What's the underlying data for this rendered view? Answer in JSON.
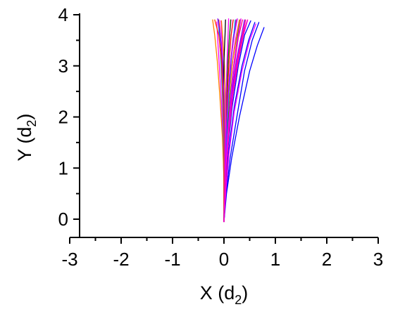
{
  "chart_data": {
    "type": "line",
    "xlabel": {
      "main": "X (d",
      "sub": "2",
      "close": ")"
    },
    "ylabel": {
      "main": "Y (d",
      "sub": "2",
      "close": ")"
    },
    "xlim": [
      -3,
      3
    ],
    "ylim": [
      -0.35,
      4
    ],
    "x_ticks": [
      -3,
      -2,
      -1,
      0,
      1,
      2,
      3
    ],
    "x_tick_labels": [
      "-3",
      "-2",
      "-1",
      "0",
      "1",
      "2",
      "3"
    ],
    "y_ticks": [
      0,
      1,
      2,
      3,
      4
    ],
    "y_tick_labels": [
      "0",
      "1",
      "2",
      "3",
      "4"
    ],
    "grid": false,
    "legend": "none",
    "series": [
      {
        "color": "#0000ff",
        "points": [
          [
            0.0,
            -0.05
          ],
          [
            0.05,
            0.5
          ],
          [
            0.15,
            1.2
          ],
          [
            0.3,
            2.0
          ],
          [
            0.5,
            2.9
          ],
          [
            0.65,
            3.4
          ],
          [
            0.78,
            3.75
          ]
        ]
      },
      {
        "color": "#0000ff",
        "points": [
          [
            0.0,
            -0.05
          ],
          [
            0.04,
            0.5
          ],
          [
            0.12,
            1.2
          ],
          [
            0.25,
            2.0
          ],
          [
            0.4,
            2.9
          ],
          [
            0.55,
            3.5
          ],
          [
            0.68,
            3.85
          ]
        ]
      },
      {
        "color": "#0000ff",
        "points": [
          [
            0.0,
            -0.05
          ],
          [
            0.03,
            0.6
          ],
          [
            0.1,
            1.4
          ],
          [
            0.2,
            2.2
          ],
          [
            0.35,
            3.0
          ],
          [
            0.48,
            3.5
          ],
          [
            0.6,
            3.85
          ]
        ]
      },
      {
        "color": "#0000ff",
        "points": [
          [
            0.0,
            -0.05
          ],
          [
            0.03,
            0.6
          ],
          [
            0.08,
            1.4
          ],
          [
            0.16,
            2.2
          ],
          [
            0.28,
            3.0
          ],
          [
            0.4,
            3.6
          ],
          [
            0.52,
            3.88
          ]
        ]
      },
      {
        "color": "#ff00ff",
        "points": [
          [
            0.0,
            -0.05
          ],
          [
            0.04,
            0.6
          ],
          [
            0.1,
            1.3
          ],
          [
            0.2,
            2.1
          ],
          [
            0.35,
            2.9
          ],
          [
            0.5,
            3.5
          ],
          [
            0.62,
            3.82
          ]
        ]
      },
      {
        "color": "#ff00ff",
        "points": [
          [
            0.0,
            -0.05
          ],
          [
            0.02,
            0.6
          ],
          [
            0.06,
            1.3
          ],
          [
            0.12,
            2.1
          ],
          [
            0.22,
            2.9
          ],
          [
            0.33,
            3.5
          ],
          [
            0.45,
            3.88
          ]
        ]
      },
      {
        "color": "#ff00ff",
        "points": [
          [
            0.0,
            -0.05
          ],
          [
            0.02,
            0.7
          ],
          [
            0.05,
            1.5
          ],
          [
            0.09,
            2.3
          ],
          [
            0.15,
            3.0
          ],
          [
            0.22,
            3.5
          ],
          [
            0.3,
            3.9
          ]
        ]
      },
      {
        "color": "#ff00ff",
        "points": [
          [
            0.0,
            -0.05
          ],
          [
            0.01,
            0.7
          ],
          [
            0.02,
            1.5
          ],
          [
            0.03,
            2.3
          ],
          [
            0.06,
            3.0
          ],
          [
            0.1,
            3.5
          ],
          [
            0.14,
            3.9
          ]
        ]
      },
      {
        "color": "#ff00ff",
        "points": [
          [
            0.0,
            -0.05
          ],
          [
            0.01,
            0.7
          ],
          [
            0.01,
            1.5
          ],
          [
            0.0,
            2.3
          ],
          [
            -0.02,
            3.0
          ],
          [
            -0.04,
            3.5
          ],
          [
            -0.06,
            3.88
          ]
        ]
      },
      {
        "color": "#ff00ff",
        "points": [
          [
            0.0,
            -0.05
          ],
          [
            0.0,
            0.7
          ],
          [
            -0.02,
            1.5
          ],
          [
            -0.05,
            2.3
          ],
          [
            -0.09,
            3.0
          ],
          [
            -0.12,
            3.5
          ],
          [
            -0.14,
            3.86
          ]
        ]
      },
      {
        "color": "#ff0080",
        "points": [
          [
            0.0,
            -0.05
          ],
          [
            0.03,
            0.7
          ],
          [
            0.08,
            1.5
          ],
          [
            0.15,
            2.3
          ],
          [
            0.25,
            3.0
          ],
          [
            0.35,
            3.55
          ],
          [
            0.42,
            3.9
          ]
        ]
      },
      {
        "color": "#ff0080",
        "points": [
          [
            0.0,
            -0.05
          ],
          [
            0.02,
            0.7
          ],
          [
            0.04,
            1.5
          ],
          [
            0.07,
            2.3
          ],
          [
            0.12,
            3.0
          ],
          [
            0.18,
            3.55
          ],
          [
            0.24,
            3.9
          ]
        ]
      },
      {
        "color": "#ff0080",
        "points": [
          [
            0.0,
            -0.05
          ],
          [
            0.02,
            0.7
          ],
          [
            0.06,
            1.5
          ],
          [
            0.12,
            2.3
          ],
          [
            0.2,
            3.0
          ],
          [
            0.28,
            3.55
          ],
          [
            0.36,
            3.9
          ]
        ]
      },
      {
        "color": "#ff8000",
        "points": [
          [
            0.0,
            -0.05
          ],
          [
            0.01,
            0.8
          ],
          [
            0.02,
            1.6
          ],
          [
            0.02,
            2.4
          ],
          [
            0.01,
            3.0
          ],
          [
            -0.02,
            3.5
          ],
          [
            -0.05,
            3.88
          ]
        ]
      },
      {
        "color": "#ff8000",
        "points": [
          [
            0.0,
            -0.05
          ],
          [
            0.02,
            0.8
          ],
          [
            0.05,
            1.6
          ],
          [
            0.1,
            2.4
          ],
          [
            0.17,
            3.1
          ],
          [
            0.25,
            3.6
          ],
          [
            0.3,
            3.9
          ]
        ]
      },
      {
        "color": "#ff8000",
        "points": [
          [
            0.0,
            -0.05
          ],
          [
            0.0,
            0.8
          ],
          [
            -0.03,
            1.6
          ],
          [
            -0.08,
            2.4
          ],
          [
            -0.13,
            3.1
          ],
          [
            -0.18,
            3.6
          ],
          [
            -0.22,
            3.9
          ]
        ]
      },
      {
        "color": "#ff0000",
        "points": [
          [
            0.0,
            -0.05
          ],
          [
            0.01,
            0.8
          ],
          [
            0.03,
            1.6
          ],
          [
            0.06,
            2.4
          ],
          [
            0.1,
            3.1
          ],
          [
            0.14,
            3.6
          ],
          [
            0.18,
            3.9
          ]
        ]
      },
      {
        "color": "#ff0000",
        "points": [
          [
            0.0,
            -0.05
          ],
          [
            0.0,
            0.8
          ],
          [
            -0.01,
            1.6
          ],
          [
            -0.02,
            2.4
          ],
          [
            -0.04,
            3.1
          ],
          [
            -0.07,
            3.6
          ],
          [
            -0.1,
            3.9
          ]
        ]
      },
      {
        "color": "#008000",
        "points": [
          [
            0.0,
            -0.05
          ],
          [
            0.01,
            0.8
          ],
          [
            0.03,
            1.6
          ],
          [
            0.05,
            2.4
          ],
          [
            0.08,
            3.1
          ],
          [
            0.11,
            3.6
          ],
          [
            0.13,
            3.9
          ]
        ]
      },
      {
        "color": "#008000",
        "points": [
          [
            0.0,
            -0.05
          ],
          [
            0.02,
            0.8
          ],
          [
            0.06,
            1.6
          ],
          [
            0.12,
            2.4
          ],
          [
            0.2,
            3.1
          ],
          [
            0.27,
            3.6
          ],
          [
            0.32,
            3.9
          ]
        ]
      },
      {
        "color": "#000000",
        "points": [
          [
            0.0,
            -0.05
          ],
          [
            0.01,
            0.8
          ],
          [
            0.0,
            1.6
          ],
          [
            -0.01,
            2.4
          ],
          [
            0.0,
            3.1
          ],
          [
            0.02,
            3.6
          ],
          [
            0.03,
            3.9
          ]
        ]
      },
      {
        "color": "#0080ff",
        "points": [
          [
            0.0,
            -0.05
          ],
          [
            0.0,
            0.8
          ],
          [
            -0.01,
            1.6
          ],
          [
            -0.03,
            2.4
          ],
          [
            -0.06,
            3.1
          ],
          [
            -0.09,
            3.6
          ],
          [
            -0.11,
            3.9
          ]
        ]
      },
      {
        "color": "#0080ff",
        "points": [
          [
            0.0,
            -0.05
          ],
          [
            0.02,
            0.8
          ],
          [
            0.05,
            1.6
          ],
          [
            0.09,
            2.4
          ],
          [
            0.14,
            3.1
          ],
          [
            0.19,
            3.6
          ],
          [
            0.22,
            3.9
          ]
        ]
      },
      {
        "color": "#8000ff",
        "points": [
          [
            0.0,
            -0.05
          ],
          [
            0.02,
            0.8
          ],
          [
            0.07,
            1.6
          ],
          [
            0.14,
            2.4
          ],
          [
            0.24,
            3.1
          ],
          [
            0.34,
            3.6
          ],
          [
            0.4,
            3.9
          ]
        ]
      },
      {
        "color": "#8000ff",
        "points": [
          [
            0.0,
            -0.05
          ],
          [
            0.01,
            0.8
          ],
          [
            0.01,
            1.6
          ],
          [
            0.0,
            2.4
          ],
          [
            -0.03,
            3.1
          ],
          [
            -0.07,
            3.6
          ],
          [
            -0.12,
            3.92
          ]
        ]
      },
      {
        "color": "#ff00ff",
        "points": [
          [
            0.0,
            -0.05
          ],
          [
            0.03,
            0.8
          ],
          [
            0.07,
            1.6
          ],
          [
            0.13,
            2.4
          ],
          [
            0.2,
            3.1
          ],
          [
            0.28,
            3.6
          ],
          [
            0.33,
            3.92
          ]
        ]
      },
      {
        "color": "#ff00ff",
        "points": [
          [
            0.0,
            -0.05
          ],
          [
            0.01,
            0.8
          ],
          [
            0.03,
            1.6
          ],
          [
            0.04,
            2.4
          ],
          [
            0.06,
            3.1
          ],
          [
            0.08,
            3.6
          ],
          [
            0.09,
            3.92
          ]
        ]
      },
      {
        "color": "#ff4000",
        "points": [
          [
            0.0,
            -0.05
          ],
          [
            0.0,
            0.8
          ],
          [
            0.0,
            1.6
          ],
          [
            -0.02,
            2.4
          ],
          [
            -0.05,
            3.1
          ],
          [
            -0.1,
            3.6
          ],
          [
            -0.18,
            3.9
          ]
        ]
      },
      {
        "color": "#c000ff",
        "points": [
          [
            0.0,
            -0.05
          ],
          [
            0.02,
            0.8
          ],
          [
            0.04,
            1.6
          ],
          [
            0.08,
            2.4
          ],
          [
            0.13,
            3.1
          ],
          [
            0.2,
            3.6
          ],
          [
            0.26,
            3.92
          ]
        ]
      },
      {
        "color": "#ff00c0",
        "points": [
          [
            0.0,
            -0.05
          ],
          [
            0.03,
            0.8
          ],
          [
            0.09,
            1.6
          ],
          [
            0.17,
            2.4
          ],
          [
            0.28,
            3.1
          ],
          [
            0.38,
            3.6
          ],
          [
            0.46,
            3.9
          ]
        ]
      }
    ]
  }
}
